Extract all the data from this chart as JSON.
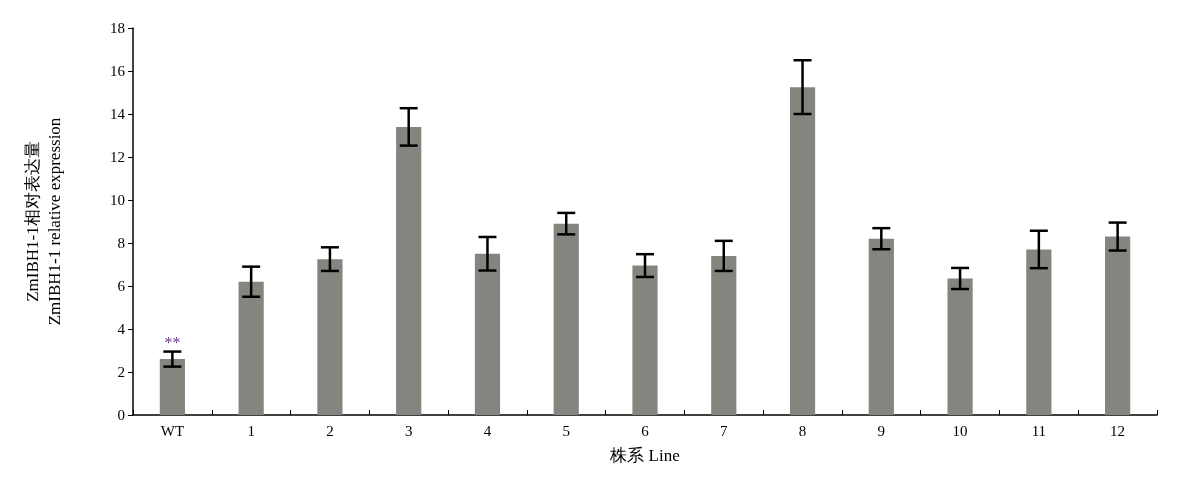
{
  "chart_data": {
    "type": "bar",
    "xlabel": "株系 Line",
    "ylabel": "ZmIBH1-1相对表达量\nZmIBH1-1 relative expression",
    "categories": [
      "WT",
      "1",
      "2",
      "3",
      "4",
      "5",
      "6",
      "7",
      "8",
      "9",
      "10",
      "11",
      "12"
    ],
    "values": [
      2.6,
      6.2,
      7.25,
      13.4,
      7.5,
      8.9,
      6.95,
      7.4,
      15.25,
      8.2,
      6.35,
      7.7,
      8.3
    ],
    "errors": [
      0.35,
      0.7,
      0.55,
      0.87,
      0.78,
      0.5,
      0.53,
      0.7,
      1.25,
      0.49,
      0.49,
      0.87,
      0.65
    ],
    "color": "#858580",
    "ylim": [
      0,
      18
    ],
    "yticks": [
      0,
      2,
      4,
      6,
      8,
      10,
      12,
      14,
      16,
      18
    ],
    "grid": false,
    "annotations": [
      {
        "text": "**",
        "x": "WT",
        "y": 3.0
      }
    ]
  }
}
